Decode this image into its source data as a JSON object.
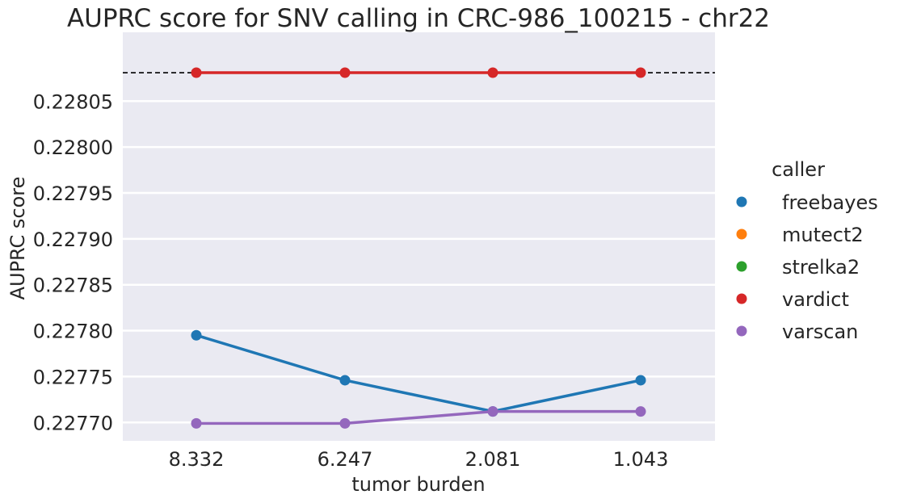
{
  "chart_data": {
    "type": "line",
    "title": "AUPRC score for SNV calling in CRC-986_100215 - chr22",
    "xlabel": "tumor burden",
    "ylabel": "AUPRC score",
    "categories": [
      "8.332",
      "6.247",
      "2.081",
      "1.043"
    ],
    "ylim": [
      0.22768,
      0.228125
    ],
    "yticks": [
      "0.22770",
      "0.22775",
      "0.22780",
      "0.22785",
      "0.22790",
      "0.22795",
      "0.22800",
      "0.22805"
    ],
    "reference_line": {
      "value": 0.228081,
      "style": "dashed",
      "color": "#000000"
    },
    "grid": true,
    "background": "#eaeaf2",
    "legend": {
      "title": "caller",
      "placement": "right",
      "entries": [
        {
          "name": "freebayes",
          "color": "#1f77b4"
        },
        {
          "name": "mutect2",
          "color": "#ff7f0e"
        },
        {
          "name": "strelka2",
          "color": "#2ca02c"
        },
        {
          "name": "vardict",
          "color": "#d62728"
        },
        {
          "name": "varscan",
          "color": "#9467bd"
        }
      ]
    },
    "series": [
      {
        "name": "freebayes",
        "color": "#1f77b4",
        "values": [
          0.227795,
          0.227746,
          0.227712,
          0.227746
        ]
      },
      {
        "name": "varscan",
        "color": "#9467bd",
        "values": [
          0.227699,
          0.227699,
          0.227712,
          0.227712
        ]
      },
      {
        "name": "vardict",
        "color": "#d62728",
        "values": [
          0.228081,
          0.228081,
          0.228081,
          0.228081
        ]
      }
    ]
  }
}
